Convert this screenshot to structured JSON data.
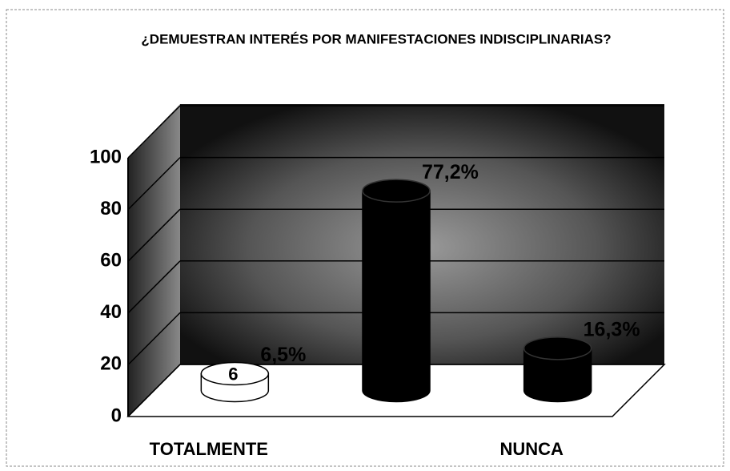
{
  "chart_data": {
    "type": "bar3d",
    "title": "¿DEMUESTRAN INTERÉS POR MANIFESTACIONES INDISCIPLINARIAS?",
    "categories": [
      "TOTALMENTE",
      null,
      "NUNCA"
    ],
    "values": [
      6.5,
      77.2,
      16.3
    ],
    "value_labels": [
      "6,5%",
      "77,2%",
      "16,3%"
    ],
    "colors": [
      "#ffffff",
      "#000000",
      "#000000"
    ],
    "annotation": "6",
    "ylim": [
      0,
      100
    ],
    "yticks": [
      0,
      20,
      40,
      60,
      80,
      100
    ],
    "grid": true
  }
}
